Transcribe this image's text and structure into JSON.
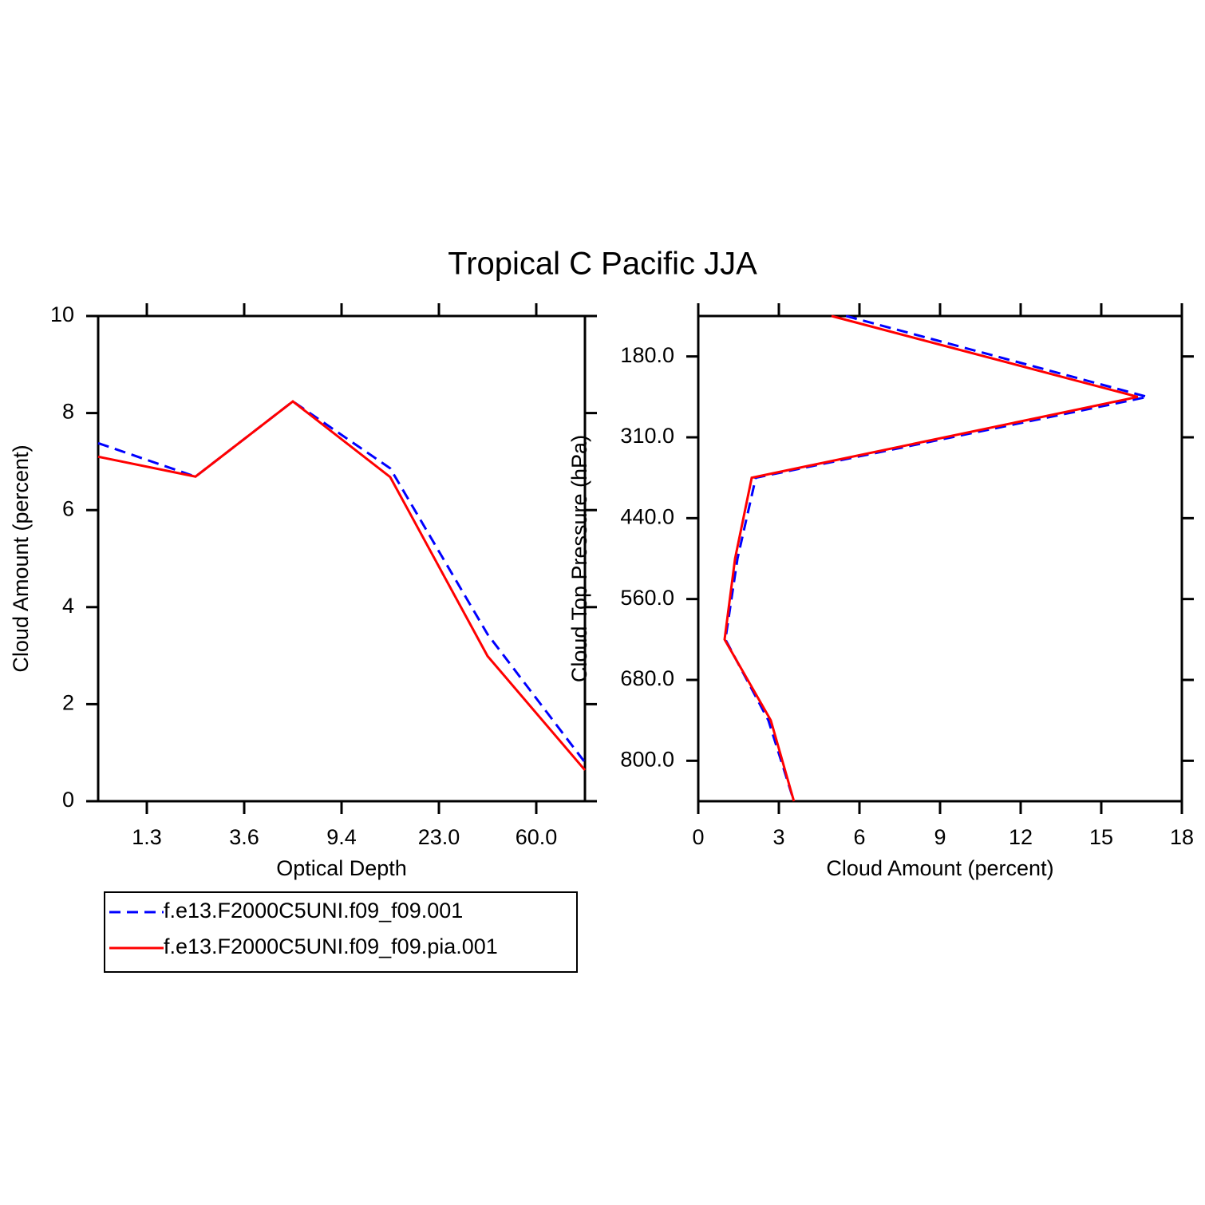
{
  "title": "Tropical C Pacific JJA",
  "chart_data": [
    {
      "type": "line",
      "x": [
        0,
        1,
        2,
        3,
        4,
        5
      ],
      "xlim": [
        0,
        5
      ],
      "xticks": [
        {
          "value": 0.5,
          "label": "1.3"
        },
        {
          "value": 1.5,
          "label": "3.6"
        },
        {
          "value": 2.5,
          "label": "9.4"
        },
        {
          "value": 3.5,
          "label": "23.0"
        },
        {
          "value": 4.5,
          "label": "60.0"
        }
      ],
      "ylim": [
        0,
        10
      ],
      "yticks": [
        0,
        2,
        4,
        6,
        8,
        10
      ],
      "xlabel": "Optical Depth",
      "ylabel": "Cloud Amount (percent)",
      "legend": "below",
      "series": [
        {
          "name": "f.e13.F2000C5UNI.f09_f09.001",
          "color": "#0000ff",
          "dash": true,
          "values": [
            7.38,
            6.69,
            8.24,
            6.86,
            3.44,
            0.8
          ]
        },
        {
          "name": "f.e13.F2000C5UNI.f09_f09.pia.001",
          "color": "#ff0000",
          "dash": false,
          "values": [
            7.1,
            6.69,
            8.24,
            6.68,
            2.99,
            0.64
          ]
        }
      ]
    },
    {
      "type": "line",
      "orientation": "horizontal",
      "y": [
        0,
        1,
        2,
        3,
        4,
        5,
        6
      ],
      "ylim": [
        6,
        0
      ],
      "yticks": [
        {
          "value": 0.5,
          "label": "180.0"
        },
        {
          "value": 1.5,
          "label": "310.0"
        },
        {
          "value": 2.5,
          "label": "440.0"
        },
        {
          "value": 3.5,
          "label": "560.0"
        },
        {
          "value": 4.5,
          "label": "680.0"
        },
        {
          "value": 5.5,
          "label": "800.0"
        }
      ],
      "xlim": [
        0,
        18
      ],
      "xticks": [
        0,
        3,
        6,
        9,
        12,
        15,
        18
      ],
      "xlabel": "Cloud Amount (percent)",
      "ylabel": "Cloud Top Pressure (hPa)",
      "series": [
        {
          "color": "#0000ff",
          "dash": true,
          "values": [
            5.5,
            16.72,
            2.14,
            1.46,
            1.01,
            2.61,
            3.56
          ]
        },
        {
          "color": "#ff0000",
          "dash": false,
          "values": [
            4.96,
            16.36,
            1.99,
            1.37,
            0.98,
            2.7,
            3.56
          ]
        }
      ]
    }
  ]
}
